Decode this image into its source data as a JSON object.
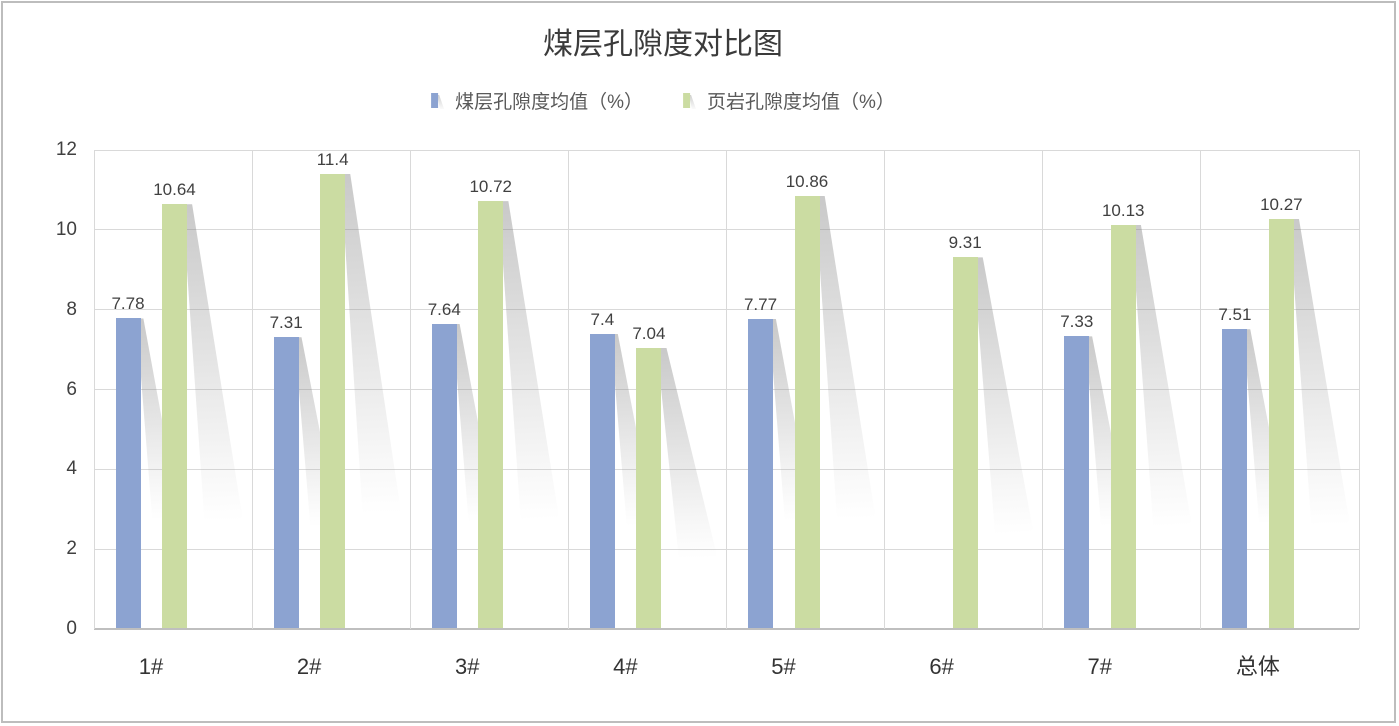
{
  "title": "煤层孔隙度对比图",
  "chart_data": {
    "type": "bar",
    "title": "煤层孔隙度对比图",
    "categories": [
      "1#",
      "2#",
      "3#",
      "4#",
      "5#",
      "6#",
      "7#",
      "总体"
    ],
    "series": [
      {
        "name": "煤层孔隙度均值（%）",
        "color": "#8ca3d1",
        "values": [
          7.78,
          7.31,
          7.64,
          7.4,
          7.77,
          null,
          7.33,
          7.51
        ]
      },
      {
        "name": "页岩孔隙度均值（%）",
        "color": "#cbdca2",
        "values": [
          10.64,
          11.4,
          10.72,
          7.04,
          10.86,
          9.31,
          10.13,
          10.27
        ]
      }
    ],
    "xlabel": "",
    "ylabel": "",
    "ylim": [
      0,
      12
    ],
    "yticks": [
      0,
      2,
      4,
      6,
      8,
      10,
      12
    ],
    "grid": true,
    "gridline_color": "#d9d9d9",
    "axis_line_color": "#bfbfbf",
    "legend_position": "top",
    "data_labels": true,
    "bar_effect": "perspective-shadow"
  }
}
